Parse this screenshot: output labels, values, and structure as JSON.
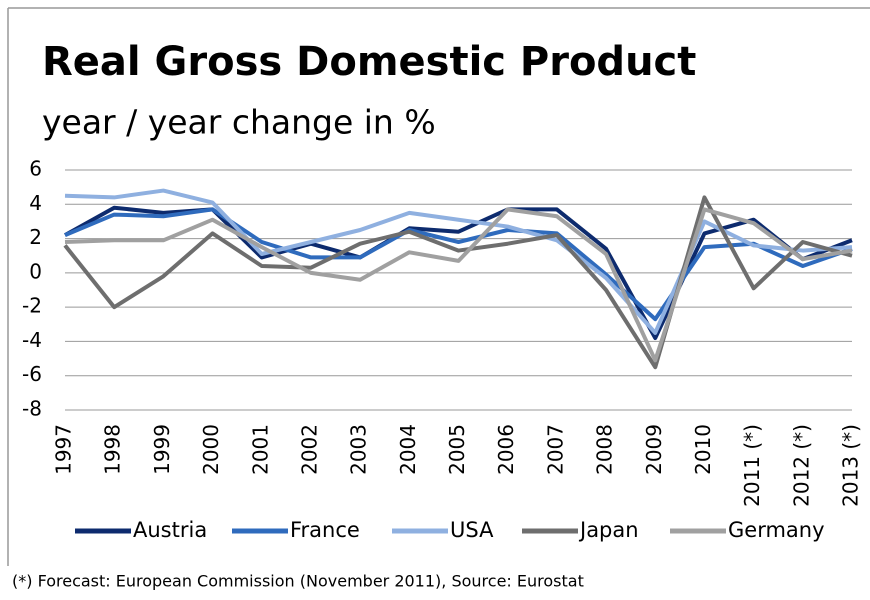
{
  "chart_data": {
    "type": "line",
    "title": "Real Gross Domestic Product",
    "subtitle": "year / year change in %",
    "note": "(*) Forecast: European Commission (November 2011), Source: Eurostat",
    "categories": [
      "1997",
      "1998",
      "1999",
      "2000",
      "2001",
      "2002",
      "2003",
      "2004",
      "2005",
      "2006",
      "2007",
      "2008",
      "2009",
      "2010",
      "2011 (*)",
      "2012 (*)",
      "2013 (*)"
    ],
    "series": [
      {
        "name": "Austria",
        "color": "#0d2b6e",
        "values": [
          2.2,
          3.8,
          3.5,
          3.7,
          0.9,
          1.7,
          0.9,
          2.6,
          2.4,
          3.7,
          3.7,
          1.4,
          -3.8,
          2.3,
          3.1,
          0.8,
          1.9
        ]
      },
      {
        "name": "France",
        "color": "#2f6bbd",
        "values": [
          2.2,
          3.4,
          3.3,
          3.7,
          1.8,
          0.9,
          0.9,
          2.5,
          1.8,
          2.5,
          2.3,
          -0.1,
          -2.7,
          1.5,
          1.7,
          0.4,
          1.4
        ]
      },
      {
        "name": "USA",
        "color": "#8fb0e0",
        "values": [
          4.5,
          4.4,
          4.8,
          4.1,
          1.1,
          1.8,
          2.5,
          3.5,
          3.1,
          2.7,
          1.9,
          -0.3,
          -3.5,
          3.0,
          1.6,
          1.3,
          1.5
        ]
      },
      {
        "name": "Japan",
        "color": "#6e6e6e",
        "values": [
          1.6,
          -2.0,
          -0.2,
          2.3,
          0.4,
          0.3,
          1.7,
          2.4,
          1.3,
          1.7,
          2.2,
          -1.0,
          -5.5,
          4.4,
          -0.9,
          1.8,
          1.0
        ]
      },
      {
        "name": "Germany",
        "color": "#a0a0a0",
        "values": [
          1.8,
          1.9,
          1.9,
          3.1,
          1.5,
          0.0,
          -0.4,
          1.2,
          0.7,
          3.7,
          3.3,
          1.1,
          -5.1,
          3.7,
          2.9,
          0.8,
          1.3
        ]
      }
    ],
    "ylim": [
      -8,
      6
    ],
    "yticks": [
      6,
      4,
      2,
      0,
      -2,
      -4,
      -6,
      -8
    ],
    "grid": true,
    "legend": "bottom"
  }
}
